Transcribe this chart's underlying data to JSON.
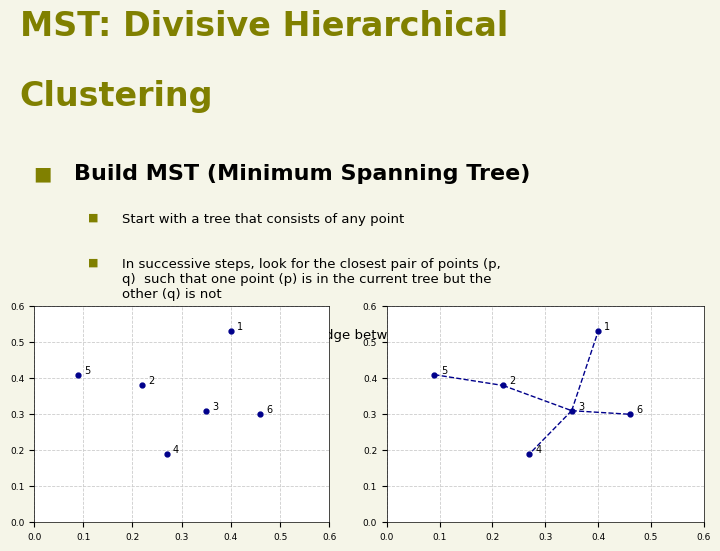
{
  "title_line1": "MST: Divisive Hierarchical",
  "title_line2": "Clustering",
  "title_color": "#808000",
  "bg_color": "#ffffff",
  "slide_bg": "#f5f5e8",
  "bullet_color": "#808000",
  "heading": "Build MST (Minimum Spanning Tree)",
  "bullets": [
    "Start with a tree that consists of any point",
    "In successive steps, look for the closest pair of points (p,\nq)  such that one point (p) is in the current tree but the\nother (q) is not",
    "Add q to the tree and put an edge between p and q"
  ],
  "points": {
    "1": [
      0.4,
      0.53
    ],
    "2": [
      0.22,
      0.38
    ],
    "3": [
      0.35,
      0.31
    ],
    "4": [
      0.27,
      0.19
    ],
    "5": [
      0.09,
      0.41
    ],
    "6": [
      0.46,
      0.3
    ]
  },
  "mst_edges": [
    [
      "5",
      "2"
    ],
    [
      "2",
      "3"
    ],
    [
      "3",
      "6"
    ],
    [
      "3",
      "4"
    ],
    [
      "3",
      "1"
    ]
  ],
  "point_color": "#00008B",
  "edge_color": "#00008B",
  "xlim": [
    0,
    0.6
  ],
  "ylim": [
    0,
    0.6
  ],
  "xticks": [
    0,
    0.1,
    0.2,
    0.3,
    0.4,
    0.5,
    0.6
  ],
  "yticks": [
    0,
    0.1,
    0.2,
    0.3,
    0.4,
    0.5,
    0.6
  ]
}
